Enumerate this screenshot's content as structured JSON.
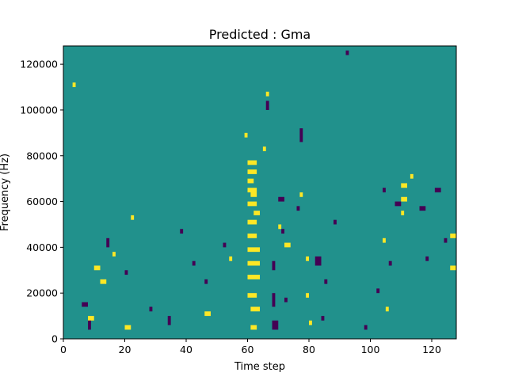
{
  "chart_data": {
    "type": "heatmap",
    "title": "Predicted : Gma",
    "xlabel": "Time step",
    "ylabel": "Frequency (Hz)",
    "xlim": [
      0,
      128
    ],
    "ylim": [
      0,
      128000
    ],
    "xticks": [
      0,
      20,
      40,
      60,
      80,
      100,
      120
    ],
    "yticks": [
      0,
      20000,
      40000,
      60000,
      80000,
      100000,
      120000
    ],
    "xtick_labels": [
      "0",
      "20",
      "40",
      "60",
      "80",
      "100",
      "120"
    ],
    "ytick_labels": [
      "0",
      "20000",
      "40000",
      "60000",
      "80000",
      "100000",
      "120000"
    ],
    "n_freq_bins": 64,
    "value_levels": [
      -1,
      0,
      1
    ],
    "colormap": {
      "-1": "#440154",
      "0": "#21918c",
      "1": "#fde725"
    },
    "background_value": 0,
    "legend": "none",
    "grid": false,
    "cells_note": "Each run is [time_start, time_end, freq_start_hz, freq_end_hz, value]",
    "runs": [
      [
        60,
        63,
        76000,
        78000,
        1
      ],
      [
        60,
        63,
        72000,
        74000,
        1
      ],
      [
        60,
        63,
        64000,
        66000,
        1
      ],
      [
        60,
        63,
        58000,
        60000,
        1
      ],
      [
        60,
        63,
        50000,
        52000,
        1
      ],
      [
        60,
        63,
        44000,
        46000,
        1
      ],
      [
        60,
        64,
        38000,
        40000,
        1
      ],
      [
        60,
        64,
        32000,
        34000,
        1
      ],
      [
        60,
        64,
        26000,
        28000,
        1
      ],
      [
        60,
        63,
        18000,
        20000,
        1
      ],
      [
        61,
        64,
        12000,
        14000,
        1
      ],
      [
        61,
        63,
        4000,
        6000,
        1
      ],
      [
        61,
        63,
        62000,
        64000,
        1
      ],
      [
        60,
        62,
        68000,
        70000,
        1
      ],
      [
        62,
        64,
        54000,
        56000,
        1
      ],
      [
        59,
        60,
        88000,
        90000,
        1
      ],
      [
        65,
        66,
        82000,
        84000,
        1
      ],
      [
        66,
        67,
        106000,
        108000,
        1
      ],
      [
        72,
        74,
        40000,
        42000,
        1
      ],
      [
        70,
        71,
        48000,
        50000,
        1
      ],
      [
        77,
        78,
        62000,
        64000,
        1
      ],
      [
        79,
        80,
        18000,
        20000,
        1
      ],
      [
        79,
        80,
        34000,
        36000,
        1
      ],
      [
        80,
        81,
        6000,
        8000,
        1
      ],
      [
        110,
        112,
        60000,
        62000,
        1
      ],
      [
        110,
        111,
        54000,
        56000,
        1
      ],
      [
        110,
        112,
        66000,
        68000,
        1
      ],
      [
        113,
        114,
        70000,
        72000,
        1
      ],
      [
        104,
        105,
        42000,
        44000,
        1
      ],
      [
        105,
        106,
        12000,
        14000,
        1
      ],
      [
        12,
        14,
        24000,
        26000,
        1
      ],
      [
        10,
        12,
        30000,
        32000,
        1
      ],
      [
        16,
        17,
        36000,
        38000,
        1
      ],
      [
        8,
        10,
        8000,
        10000,
        1
      ],
      [
        20,
        22,
        4000,
        6000,
        1
      ],
      [
        126,
        128,
        30000,
        32000,
        1
      ],
      [
        126,
        128,
        44000,
        46000,
        1
      ],
      [
        22,
        23,
        52000,
        54000,
        1
      ],
      [
        3,
        4,
        110000,
        112000,
        1
      ],
      [
        46,
        48,
        10000,
        12000,
        1
      ],
      [
        54,
        55,
        34000,
        36000,
        1
      ],
      [
        68,
        70,
        4000,
        8000,
        -1
      ],
      [
        68,
        69,
        14000,
        20000,
        -1
      ],
      [
        68,
        69,
        30000,
        34000,
        -1
      ],
      [
        72,
        73,
        16000,
        18000,
        -1
      ],
      [
        76,
        77,
        56000,
        58000,
        -1
      ],
      [
        82,
        84,
        32000,
        36000,
        -1
      ],
      [
        84,
        85,
        8000,
        10000,
        -1
      ],
      [
        85,
        86,
        24000,
        26000,
        -1
      ],
      [
        70,
        72,
        60000,
        62000,
        -1
      ],
      [
        71,
        72,
        46000,
        48000,
        -1
      ],
      [
        66,
        67,
        100000,
        104000,
        -1
      ],
      [
        77,
        78,
        86000,
        92000,
        -1
      ],
      [
        104,
        105,
        64000,
        66000,
        -1
      ],
      [
        106,
        107,
        32000,
        34000,
        -1
      ],
      [
        108,
        110,
        58000,
        60000,
        -1
      ],
      [
        116,
        118,
        56000,
        58000,
        -1
      ],
      [
        121,
        123,
        64000,
        66000,
        -1
      ],
      [
        8,
        9,
        4000,
        8000,
        -1
      ],
      [
        6,
        8,
        14000,
        16000,
        -1
      ],
      [
        14,
        15,
        40000,
        44000,
        -1
      ],
      [
        34,
        35,
        6000,
        10000,
        -1
      ],
      [
        38,
        39,
        46000,
        48000,
        -1
      ],
      [
        42,
        43,
        32000,
        34000,
        -1
      ],
      [
        46,
        47,
        24000,
        26000,
        -1
      ],
      [
        52,
        53,
        40000,
        42000,
        -1
      ],
      [
        88,
        89,
        50000,
        52000,
        -1
      ],
      [
        92,
        93,
        124000,
        126000,
        -1
      ],
      [
        98,
        99,
        4000,
        6000,
        -1
      ],
      [
        102,
        103,
        20000,
        22000,
        -1
      ],
      [
        118,
        119,
        34000,
        36000,
        -1
      ],
      [
        124,
        125,
        42000,
        44000,
        -1
      ],
      [
        28,
        29,
        12000,
        14000,
        -1
      ],
      [
        20,
        21,
        28000,
        30000,
        -1
      ]
    ]
  }
}
